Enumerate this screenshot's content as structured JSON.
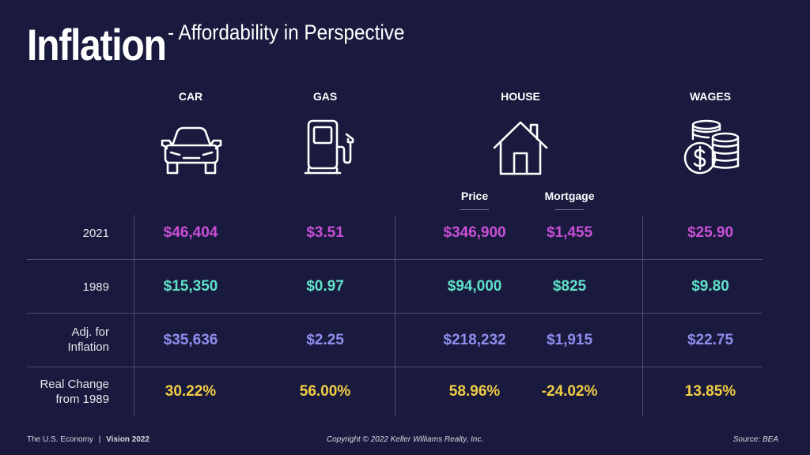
{
  "title": {
    "main": "Inflation",
    "sub": "- Affordability in Perspective"
  },
  "columns": [
    {
      "label": "CAR",
      "icon": "car-icon"
    },
    {
      "label": "GAS",
      "icon": "gas-pump-icon"
    },
    {
      "label": "HOUSE",
      "icon": "house-icon"
    },
    {
      "label": "WAGES",
      "icon": "coins-dollar-icon"
    }
  ],
  "house_subcolumns": [
    "Price",
    "Mortgage"
  ],
  "rows": [
    {
      "label": "2021",
      "values": [
        "$46,404",
        "$3.51",
        "$346,900",
        "$1,455",
        "$25.90"
      ]
    },
    {
      "label": "1989",
      "values": [
        "$15,350",
        "$0.97",
        "$94,000",
        "$825",
        "$9.80"
      ]
    },
    {
      "label_lines": [
        "Adj. for",
        "Inflation"
      ],
      "values": [
        "$35,636",
        "$2.25",
        "$218,232",
        "$1,915",
        "$22.75"
      ]
    },
    {
      "label_lines": [
        "Real Change",
        "from 1989"
      ],
      "values": [
        "30.22%",
        "56.00%",
        "58.96%",
        "-24.02%",
        "13.85%"
      ]
    }
  ],
  "colors": {
    "background": "#191a3d",
    "row_2021": "#c94fd6",
    "row_1989": "#5fe0c8",
    "row_adjusted": "#8f8ef0",
    "row_real_change": "#f2cd45"
  },
  "footer": {
    "left": "The U.S. Economy",
    "separator": "|",
    "left_bold": "Vision 2022",
    "center": "Copyright © 2022 Keller Williams Realty, Inc.",
    "right": "Source: BEA"
  }
}
